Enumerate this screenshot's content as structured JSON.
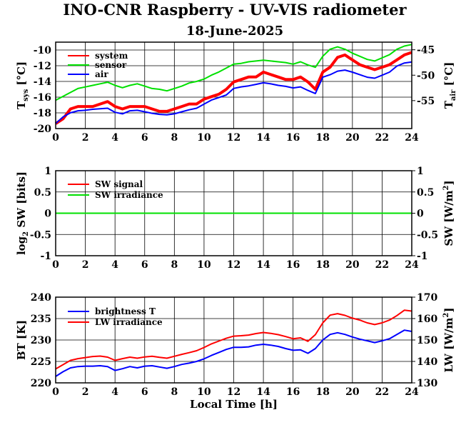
{
  "title": "INO-CNR Raspberry - UV-VIS radiometer",
  "subtitle": "18-June-2025",
  "chart_data": [
    {
      "type": "line",
      "ylabel_left": {
        "main": "T",
        "sub": "sys",
        "unit": "[°C]"
      },
      "ylabel_right": {
        "main": "T",
        "sub": "air",
        "unit": "[°C]"
      },
      "xlim": [
        0,
        24
      ],
      "ylim_left": [
        -20,
        -9
      ],
      "ylim_right": [
        -60.5,
        -43.5
      ],
      "xticks": [
        "0",
        "2",
        "4",
        "6",
        "8",
        "10",
        "12",
        "14",
        "16",
        "18",
        "20",
        "22",
        "24"
      ],
      "yticks_left": [
        "-10",
        "-12",
        "-14",
        "-16",
        "-18",
        "-20"
      ],
      "yticks_right": [
        "-45",
        "-50",
        "-55"
      ],
      "legend": [
        "system",
        "sensor",
        "air"
      ],
      "colors": {
        "system": "#ff0000",
        "sensor": "#00e000",
        "air": "#0000ff"
      },
      "series": [
        {
          "name": "system",
          "axis": "left",
          "x": [
            0,
            0.5,
            1,
            1.5,
            2,
            2.5,
            3,
            3.5,
            4,
            4.5,
            5,
            5.5,
            6,
            6.5,
            7,
            7.5,
            8,
            8.5,
            9,
            9.5,
            10,
            10.5,
            11,
            11.5,
            12,
            12.5,
            13,
            13.5,
            14,
            14.5,
            15,
            15.5,
            16,
            16.5,
            17,
            17.5,
            18,
            18.5,
            19,
            19.5,
            20,
            20.5,
            21,
            21.5,
            22,
            22.5,
            23,
            23.5,
            24
          ],
          "values": [
            -19.4,
            -18.7,
            -17.5,
            -17.1,
            -17.1,
            -17.1,
            -16.8,
            -16.7,
            -17.1,
            -17.4,
            -17.1,
            -17.1,
            -17.3,
            -17.6,
            -17.8,
            -17.9,
            -17.6,
            -17.2,
            -17.0,
            -16.9,
            -16.4,
            -15.8,
            -15.5,
            -15.0,
            -14.1,
            -13.7,
            -13.5,
            -13.3,
            -12.9,
            -13.1,
            -13.3,
            -13.6,
            -13.9,
            -13.4,
            -14.2,
            -14.9,
            -12.9,
            -12.1,
            -11.0,
            -10.6,
            -11.2,
            -12.0,
            -12.2,
            -12.4,
            -12.3,
            -11.9,
            -11.4,
            -10.6,
            -10.4
          ]
        },
        {
          "name": "sensor",
          "axis": "left",
          "x": [
            0,
            0.5,
            1,
            1.5,
            2,
            2.5,
            3,
            3.5,
            4,
            4.5,
            5,
            5.5,
            6,
            6.5,
            7,
            7.5,
            8,
            8.5,
            9,
            9.5,
            10,
            10.5,
            11,
            11.5,
            12,
            12.5,
            13,
            13.5,
            14,
            14.5,
            15,
            15.5,
            16,
            16.5,
            17,
            17.5,
            18,
            18.5,
            19,
            19.5,
            20,
            20.5,
            21,
            21.5,
            22,
            22.5,
            23,
            23.5,
            24
          ],
          "values": [
            -16.4,
            -15.9,
            -15.4,
            -14.9,
            -14.7,
            -14.5,
            -14.3,
            -14.1,
            -14.5,
            -14.8,
            -14.5,
            -14.3,
            -14.6,
            -14.9,
            -15.0,
            -15.2,
            -14.9,
            -14.6,
            -14.2,
            -14.0,
            -13.7,
            -13.2,
            -12.8,
            -12.3,
            -11.8,
            -11.7,
            -11.5,
            -11.4,
            -11.3,
            -11.4,
            -11.5,
            -11.6,
            -11.8,
            -11.5,
            -11.9,
            -12.2,
            -10.8,
            -9.9,
            -9.6,
            -9.9,
            -10.4,
            -10.8,
            -11.2,
            -11.4,
            -11.0,
            -10.6,
            -9.9,
            -9.5,
            -9.3
          ]
        },
        {
          "name": "air",
          "axis": "right",
          "x": [
            0,
            0.5,
            1,
            1.5,
            2,
            2.5,
            3,
            3.5,
            4,
            4.5,
            5,
            5.5,
            6,
            6.5,
            7,
            7.5,
            8,
            8.5,
            9,
            9.5,
            10,
            10.5,
            11,
            11.5,
            12,
            12.5,
            13,
            13.5,
            14,
            14.5,
            15,
            15.5,
            16,
            16.5,
            17,
            17.5,
            18,
            18.5,
            19,
            19.5,
            20,
            20.5,
            21,
            21.5,
            22,
            22.5,
            23,
            23.5,
            24
          ],
          "values": [
            -59.5,
            -58.2,
            -57.4,
            -57.0,
            -56.9,
            -56.7,
            -56.6,
            -56.5,
            -57.3,
            -57.6,
            -57.0,
            -56.9,
            -57.2,
            -57.5,
            -57.7,
            -57.8,
            -57.6,
            -57.2,
            -56.8,
            -56.5,
            -55.7,
            -54.9,
            -54.4,
            -53.9,
            -52.6,
            -52.3,
            -52.1,
            -51.8,
            -51.5,
            -51.7,
            -52.0,
            -52.2,
            -52.5,
            -52.3,
            -53.0,
            -53.6,
            -50.4,
            -49.9,
            -49.2,
            -49.0,
            -49.4,
            -49.9,
            -50.4,
            -50.6,
            -50.0,
            -49.4,
            -48.2,
            -47.6,
            -47.4
          ]
        }
      ]
    },
    {
      "type": "line",
      "ylabel_left": {
        "main": "log",
        "sub": "2",
        "rest": "SW [bits]"
      },
      "ylabel_right": {
        "main": "SW [W/m",
        "sup": "2",
        "end": "]"
      },
      "xlim": [
        0,
        24
      ],
      "ylim_left": [
        -1,
        1
      ],
      "ylim_right": [
        -1,
        1
      ],
      "xticks": [
        "0",
        "2",
        "4",
        "6",
        "8",
        "10",
        "12",
        "14",
        "16",
        "18",
        "20",
        "22",
        "24"
      ],
      "yticks_left": [
        "1",
        "0.5",
        "0",
        "-0.5",
        "-1"
      ],
      "yticks_right": [
        "1",
        "0.5",
        "0",
        "-0.5",
        "-1"
      ],
      "legend": [
        "SW signal",
        "SW irradiance"
      ],
      "colors": {
        "SW signal": "#ff0000",
        "SW irradiance": "#00e000"
      },
      "series": [
        {
          "name": "SW signal",
          "axis": "left",
          "x": [
            0,
            24
          ],
          "values": [
            0,
            0
          ]
        },
        {
          "name": "SW irradiance",
          "axis": "right",
          "x": [
            0,
            24
          ],
          "values": [
            0,
            0
          ]
        }
      ]
    },
    {
      "type": "line",
      "ylabel_left": {
        "main": "BT [K]"
      },
      "ylabel_right": {
        "main": "LW [W/m",
        "sup": "2",
        "end": "]"
      },
      "xlabel": "Local Time [h]",
      "xlim": [
        0,
        24
      ],
      "ylim_left": [
        220,
        240
      ],
      "ylim_right": [
        130,
        170
      ],
      "xticks": [
        "0",
        "2",
        "4",
        "6",
        "8",
        "10",
        "12",
        "14",
        "16",
        "18",
        "20",
        "22",
        "24"
      ],
      "yticks_left": [
        "240",
        "235",
        "230",
        "225",
        "220"
      ],
      "yticks_right": [
        "170",
        "160",
        "150",
        "140",
        "130"
      ],
      "legend": [
        "brightness T",
        "LW irradiance"
      ],
      "colors": {
        "brightness T": "#0000ff",
        "LW irradiance": "#ff0000"
      },
      "series": [
        {
          "name": "brightness T",
          "axis": "left",
          "x": [
            0,
            0.5,
            1,
            1.5,
            2,
            2.5,
            3,
            3.5,
            4,
            4.5,
            5,
            5.5,
            6,
            6.5,
            7,
            7.5,
            8,
            8.5,
            9,
            9.5,
            10,
            10.5,
            11,
            11.5,
            12,
            12.5,
            13,
            13.5,
            14,
            14.5,
            15,
            15.5,
            16,
            16.5,
            17,
            17.5,
            18,
            18.5,
            19,
            19.5,
            20,
            20.5,
            21,
            21.5,
            22,
            22.5,
            23,
            23.5,
            24
          ],
          "values": [
            221.5,
            222.6,
            223.5,
            223.8,
            223.9,
            223.9,
            224.0,
            223.8,
            222.9,
            223.3,
            223.8,
            223.5,
            223.9,
            224.0,
            223.7,
            223.4,
            223.8,
            224.3,
            224.6,
            225.0,
            225.6,
            226.4,
            227.1,
            227.8,
            228.3,
            228.3,
            228.4,
            228.8,
            229.0,
            228.8,
            228.5,
            228.0,
            227.6,
            227.7,
            226.9,
            228.0,
            230.0,
            231.3,
            231.7,
            231.3,
            230.7,
            230.2,
            229.8,
            229.4,
            229.8,
            230.3,
            231.3,
            232.3,
            232.0
          ]
        },
        {
          "name": "LW irradiance",
          "axis": "right",
          "x": [
            0,
            0.5,
            1,
            1.5,
            2,
            2.5,
            3,
            3.5,
            4,
            4.5,
            5,
            5.5,
            6,
            6.5,
            7,
            7.5,
            8,
            8.5,
            9,
            9.5,
            10,
            10.5,
            11,
            11.5,
            12,
            12.5,
            13,
            13.5,
            14,
            14.5,
            15,
            15.5,
            16,
            16.5,
            17,
            17.5,
            18,
            18.5,
            19,
            19.5,
            20,
            20.5,
            21,
            21.5,
            22,
            22.5,
            23,
            23.5,
            24
          ],
          "values": [
            136.5,
            138.5,
            140.5,
            141.3,
            141.8,
            142.3,
            142.5,
            142.0,
            140.5,
            141.3,
            142.0,
            141.5,
            142.1,
            142.4,
            141.9,
            141.5,
            142.4,
            143.3,
            144.1,
            145.0,
            146.5,
            148.2,
            149.5,
            150.8,
            151.8,
            152.0,
            152.3,
            153.0,
            153.5,
            153.1,
            152.5,
            151.6,
            150.6,
            151.0,
            149.4,
            152.5,
            158.0,
            161.6,
            162.3,
            161.5,
            160.2,
            159.3,
            158.0,
            157.2,
            158.0,
            159.3,
            161.4,
            163.9,
            163.5
          ]
        }
      ]
    }
  ]
}
